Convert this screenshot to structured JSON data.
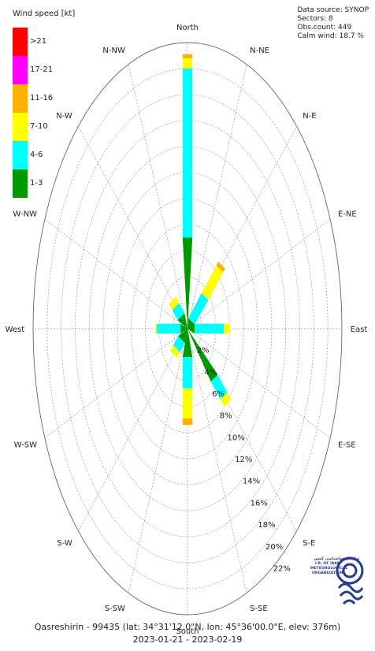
{
  "info": {
    "data_source": "Data source: SYNOP",
    "sectors": "Sectors: 8",
    "obs_count": "Obs.count: 449",
    "calm": "Calm wind: 18.7 %"
  },
  "footer": {
    "station": "Qasreshirin - 99435 (lat: 34°31'12.0\"N, lon: 45°36'00.0\"E, elev: 376m)",
    "period": "2023-01-21 - 2023-02-19"
  },
  "logo": {
    "text_line1": "سازمان هواشناسی کشور",
    "text_line2": "I.R. OF IRAN",
    "text_line3": "METEOROLOGICAL",
    "text_line4": "ORGANIZATION",
    "primary_color": "#2a3a8c"
  },
  "chart_data": {
    "type": "wind-rose",
    "title": "",
    "legend_title": "Wind speed [kt]",
    "legend_placement": "top-left",
    "speed_classes": [
      {
        "label": ">21",
        "color": "#ff0000"
      },
      {
        "label": "17-21",
        "color": "#ff00ff"
      },
      {
        "label": "11-16",
        "color": "#ffb000"
      },
      {
        "label": "7-10",
        "color": "#ffff00"
      },
      {
        "label": "4-6",
        "color": "#00ffff"
      },
      {
        "label": "1-3",
        "color": "#009900"
      }
    ],
    "direction_labels": [
      "North",
      "N-NE",
      "N-E",
      "E-NE",
      "East",
      "E-SE",
      "S-E",
      "S-SE",
      "South",
      "S-SW",
      "S-W",
      "W-SW",
      "West",
      "W-NW",
      "N-W",
      "N-NW"
    ],
    "ring_labels": [
      "2%",
      "4%",
      "6%",
      "8%",
      "10%",
      "12%",
      "14%",
      "16%",
      "18%",
      "20%",
      "22%"
    ],
    "radial_max": 22,
    "radial_step": 2,
    "grid": true,
    "sectors": [
      {
        "direction": "North",
        "angle": 0,
        "segments": {
          "1-3": 7.0,
          "4-6": 13.0,
          "7-10": 0.8,
          "11-16": 0.3
        }
      },
      {
        "direction": "N-E",
        "angle": 45,
        "segments": {
          "1-3": 0.8,
          "4-6": 2.7,
          "7-10": 3.0,
          "11-16": 0.4
        }
      },
      {
        "direction": "East",
        "angle": 90,
        "segments": {
          "1-3": 1.0,
          "4-6": 4.2,
          "7-10": 0.9
        }
      },
      {
        "direction": "S-E",
        "angle": 135,
        "segments": {
          "1-3": 5.4,
          "4-6": 1.9,
          "7-10": 0.8
        }
      },
      {
        "direction": "South",
        "angle": 180,
        "segments": {
          "1-3": 2.2,
          "4-6": 2.4,
          "7-10": 2.3,
          "11-16": 0.5
        }
      },
      {
        "direction": "S-W",
        "angle": 225,
        "segments": {
          "1-3": 1.2,
          "4-6": 1.0,
          "7-10": 0.6
        }
      },
      {
        "direction": "West",
        "angle": 270,
        "segments": {
          "1-3": 1.0,
          "4-6": 3.4,
          "7-10": 0.2
        }
      },
      {
        "direction": "N-W",
        "angle": 315,
        "segments": {
          "1-3": 1.3,
          "4-6": 1.1,
          "7-10": 0.7
        }
      }
    ]
  }
}
